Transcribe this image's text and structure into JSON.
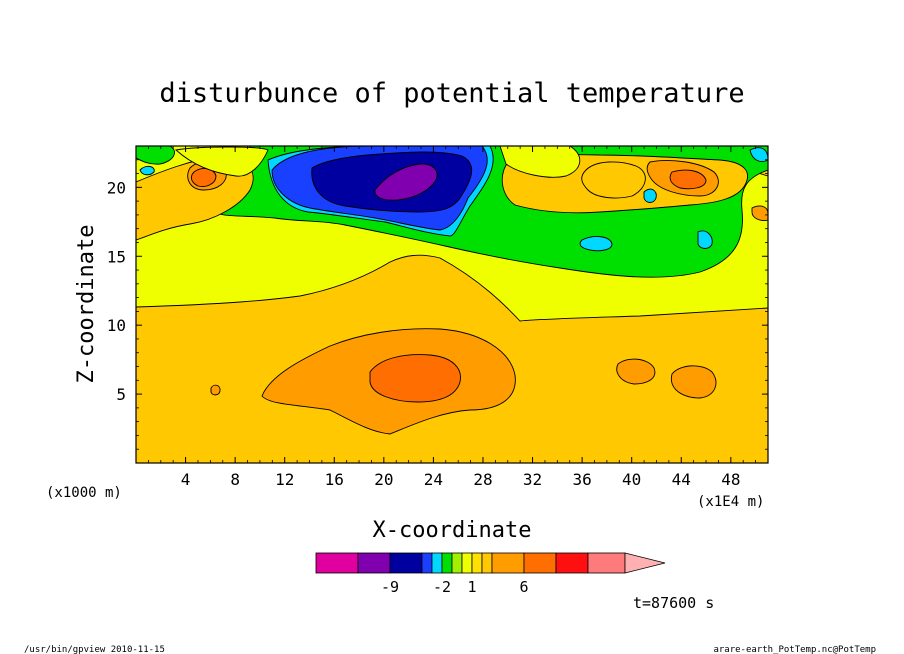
{
  "chart_data": {
    "type": "heatmap",
    "title": "disturbunce of potential temperature",
    "xlabel": "X-coordinate",
    "ylabel": "Z-coordinate",
    "x_unit_left": "(x1000 m)",
    "x_unit_right": "(x1E4 m)",
    "time_label": "t=87600 s",
    "xlim": [
      0,
      51
    ],
    "ylim": [
      0,
      23
    ],
    "x_ticks": [
      4,
      8,
      12,
      16,
      20,
      24,
      28,
      32,
      36,
      40,
      44,
      48
    ],
    "y_ticks": [
      5,
      10,
      15,
      20
    ],
    "colorbar": {
      "tick_labels": [
        {
          "level": "-9",
          "text": "-9"
        },
        {
          "level": "-2",
          "text": "-2"
        },
        {
          "level": "1",
          "text": "1"
        },
        {
          "level": "6",
          "text": "6"
        }
      ],
      "colors": [
        "#e000a0",
        "#8000b0",
        "#0000a0",
        "#1a40ff",
        "#00d8ff",
        "#00e000",
        "#a0f000",
        "#f0ff00",
        "#ffe000",
        "#ffc800",
        "#ff9c00",
        "#ff6e00",
        "#ff1010",
        "#ff7a7a",
        "#ffb0b0"
      ]
    },
    "fields": {
      "background": "#ffc800",
      "upper_band": "#f0ff00",
      "warm_core": "#ff9c00",
      "hot_core": "#ff6e00",
      "cold_layer": "#00e000",
      "cyan": "#00d8ff",
      "blue": "#1a40ff",
      "navy": "#0000a0",
      "purple": "#8000b0",
      "yellowgreen": "#a0f000"
    }
  },
  "footer": {
    "program": "/usr/bin/gpview  2010-11-15",
    "source": "arare-earth_PotTemp.nc@PotTemp"
  }
}
